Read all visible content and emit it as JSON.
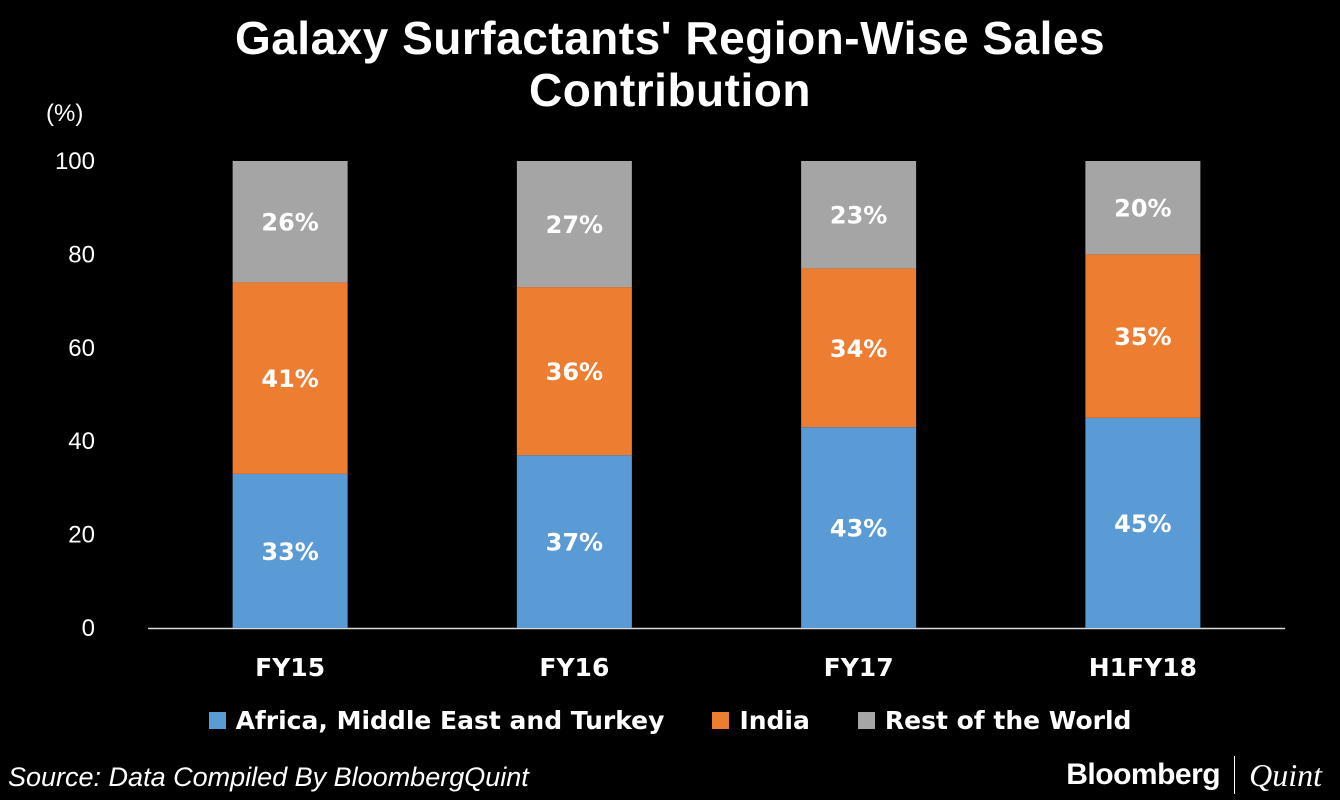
{
  "title_line1": "Galaxy Surfactants' Region-Wise Sales",
  "title_line2": "Contribution",
  "unit_label": "(%)",
  "source": "Source: Data Compiled By BloombergQuint",
  "brand": {
    "bloomberg": "Bloomberg",
    "quint": "Quint"
  },
  "chart_data": {
    "type": "bar",
    "stacked": true,
    "categories": [
      "FY15",
      "FY16",
      "FY17",
      "H1FY18"
    ],
    "ylim": [
      0,
      100
    ],
    "yticks": [
      0,
      20,
      40,
      60,
      80,
      100
    ],
    "ylabel": "(%)",
    "grid": false,
    "legend_position": "bottom",
    "series": [
      {
        "name": "Africa, Middle East and Turkey",
        "color": "#5b9bd5",
        "values": [
          33,
          37,
          43,
          45
        ],
        "labels": [
          "33%",
          "37%",
          "43%",
          "45%"
        ]
      },
      {
        "name": "India",
        "color": "#ed7d31",
        "values": [
          41,
          36,
          34,
          35
        ],
        "labels": [
          "41%",
          "36%",
          "34%",
          "35%"
        ]
      },
      {
        "name": "Rest of the World",
        "color": "#a5a5a5",
        "values": [
          26,
          27,
          23,
          20
        ],
        "labels": [
          "26%",
          "27%",
          "23%",
          "20%"
        ]
      }
    ]
  }
}
